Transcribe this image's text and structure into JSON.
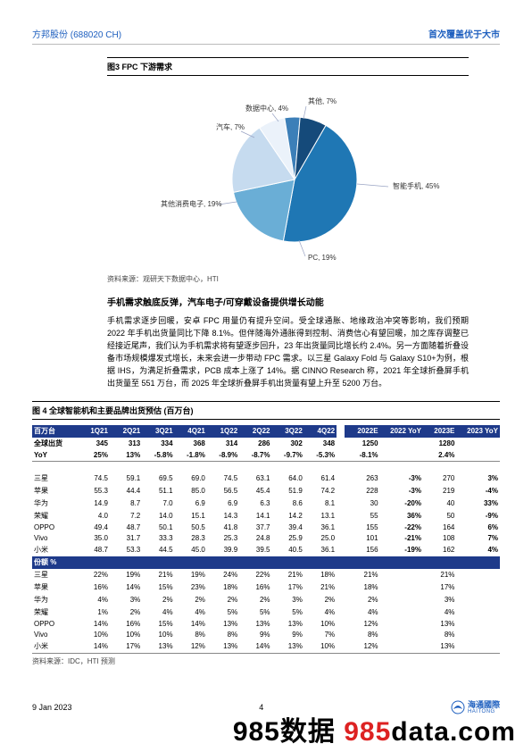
{
  "header": {
    "ticker": "方邦股份 (688020 CH)",
    "rating": "首次覆盖优于大市"
  },
  "fig3": {
    "title": "图3  FPC 下游需求",
    "source": "资料来源：观研天下数据中心，HTI",
    "chart": {
      "type": "pie",
      "background_color": "#ffffff",
      "label_fontsize": 8,
      "label_color": "#333333",
      "lead_color": "#9aa4c4",
      "slices": [
        {
          "name": "智能手机",
          "value": 45,
          "color": "#1f77b4"
        },
        {
          "name": "PC",
          "value": 19,
          "color": "#6aaed6"
        },
        {
          "name": "其他消费电子",
          "value": 19,
          "color": "#c6dbef"
        },
        {
          "name": "汽车",
          "value": 7,
          "color": "#ebf2fa"
        },
        {
          "name": "数据中心",
          "value": 4,
          "color": "#3c7fb8"
        },
        {
          "name": "其他",
          "value": 7,
          "color": "#154a7a"
        }
      ]
    }
  },
  "body": {
    "heading": "手机需求触底反弹，汽车电子/可穿戴设备提供增长动能",
    "paragraph": "手机需求逐步回暖，安卓 FPC 用量仍有提升空间。受全球通胀、地缘政治冲突等影响，我们预期 2022 年手机出货量同比下降 8.1%。但伴随海外通胀得到控制、消费信心有望回暖，加之库存调整已经接近尾声，我们认为手机需求将有望逐步回升，23 年出货量同比增长约 2.4%。另一方面随着折叠设备市场规模爆发式增长，未来会进一步带动 FPC 需求。以三星 Galaxy Fold 与 Galaxy S10+为例，根据 IHS，为满足折叠需求，PCB 成本上涨了 14%。据 CINNO Research 称，2021 年全球折叠屏手机出货量至 551 万台，而 2025 年全球折叠屏手机出货量有望上升至 5200 万台。"
  },
  "fig4": {
    "title": "图 4  全球智能机和主要品牌出货预估 (百万台)",
    "source": "资料来源：IDC，HTI 预测",
    "table": {
      "header_bg": "#1e3a8a",
      "header_fg": "#ffffff",
      "unit_label": "百万台",
      "share_label": "份额 %",
      "cols_q": [
        "1Q21",
        "2Q21",
        "3Q21",
        "4Q21",
        "1Q22",
        "2Q22",
        "3Q22",
        "4Q22"
      ],
      "cols_y": [
        "2022E",
        "2022 YoY",
        "2023E",
        "2023 YoY"
      ],
      "rows_top": [
        {
          "label": "全球出货",
          "q": [
            "345",
            "313",
            "334",
            "368",
            "314",
            "286",
            "302",
            "348"
          ],
          "y": [
            "1250",
            "",
            "1280",
            ""
          ],
          "bold": true
        },
        {
          "label": "YoY",
          "q": [
            "25%",
            "13%",
            "-5.8%",
            "-1.8%",
            "-8.9%",
            "-8.7%",
            "-9.7%",
            "-5.3%"
          ],
          "y": [
            "-8.1%",
            "",
            "2.4%",
            ""
          ],
          "bold": true
        }
      ],
      "rows_ship": [
        {
          "label": "三星",
          "q": [
            "74.5",
            "59.1",
            "69.5",
            "69.0",
            "74.5",
            "63.1",
            "64.0",
            "61.4"
          ],
          "y": [
            "263",
            "-3%",
            "270",
            "3%"
          ]
        },
        {
          "label": "苹果",
          "q": [
            "55.3",
            "44.4",
            "51.1",
            "85.0",
            "56.5",
            "45.4",
            "51.9",
            "74.2"
          ],
          "y": [
            "228",
            "-3%",
            "219",
            "-4%"
          ]
        },
        {
          "label": "华为",
          "q": [
            "14.9",
            "8.7",
            "7.0",
            "6.9",
            "6.9",
            "6.3",
            "8.6",
            "8.1"
          ],
          "y": [
            "30",
            "-20%",
            "40",
            "33%"
          ]
        },
        {
          "label": "荣耀",
          "q": [
            "4.0",
            "7.2",
            "14.0",
            "15.1",
            "14.3",
            "14.1",
            "14.2",
            "13.1"
          ],
          "y": [
            "55",
            "36%",
            "50",
            "-9%"
          ]
        },
        {
          "label": "OPPO",
          "q": [
            "49.4",
            "48.7",
            "50.1",
            "50.5",
            "41.8",
            "37.7",
            "39.4",
            "36.1"
          ],
          "y": [
            "155",
            "-22%",
            "164",
            "6%"
          ]
        },
        {
          "label": "Vivo",
          "q": [
            "35.0",
            "31.7",
            "33.3",
            "28.3",
            "25.3",
            "24.8",
            "25.9",
            "25.0"
          ],
          "y": [
            "101",
            "-21%",
            "108",
            "7%"
          ]
        },
        {
          "label": "小米",
          "q": [
            "48.7",
            "53.3",
            "44.5",
            "45.0",
            "39.9",
            "39.5",
            "40.5",
            "36.1"
          ],
          "y": [
            "156",
            "-19%",
            "162",
            "4%"
          ]
        }
      ],
      "rows_share": [
        {
          "label": "三星",
          "q": [
            "22%",
            "19%",
            "21%",
            "19%",
            "24%",
            "22%",
            "21%",
            "18%"
          ],
          "y": [
            "21%",
            "",
            "21%",
            ""
          ]
        },
        {
          "label": "苹果",
          "q": [
            "16%",
            "14%",
            "15%",
            "23%",
            "18%",
            "16%",
            "17%",
            "21%"
          ],
          "y": [
            "18%",
            "",
            "17%",
            ""
          ]
        },
        {
          "label": "华为",
          "q": [
            "4%",
            "3%",
            "2%",
            "2%",
            "2%",
            "2%",
            "3%",
            "2%"
          ],
          "y": [
            "2%",
            "",
            "3%",
            ""
          ]
        },
        {
          "label": "荣耀",
          "q": [
            "1%",
            "2%",
            "4%",
            "4%",
            "5%",
            "5%",
            "5%",
            "4%"
          ],
          "y": [
            "4%",
            "",
            "4%",
            ""
          ]
        },
        {
          "label": "OPPO",
          "q": [
            "14%",
            "16%",
            "15%",
            "14%",
            "13%",
            "13%",
            "13%",
            "10%"
          ],
          "y": [
            "12%",
            "",
            "13%",
            ""
          ]
        },
        {
          "label": "Vivo",
          "q": [
            "10%",
            "10%",
            "10%",
            "8%",
            "8%",
            "9%",
            "9%",
            "7%"
          ],
          "y": [
            "8%",
            "",
            "8%",
            ""
          ]
        },
        {
          "label": "小米",
          "q": [
            "14%",
            "17%",
            "13%",
            "12%",
            "13%",
            "14%",
            "13%",
            "10%"
          ],
          "y": [
            "12%",
            "",
            "13%",
            ""
          ]
        }
      ]
    }
  },
  "footer": {
    "date": "9 Jan 2023",
    "page": "4",
    "logo_text": "海通國際",
    "logo_sub": "HAITONG"
  },
  "watermark": {
    "a": "985数据",
    "b": " 985data.com",
    "b_prefix_red": " 985",
    "b_rest": "data.com"
  }
}
